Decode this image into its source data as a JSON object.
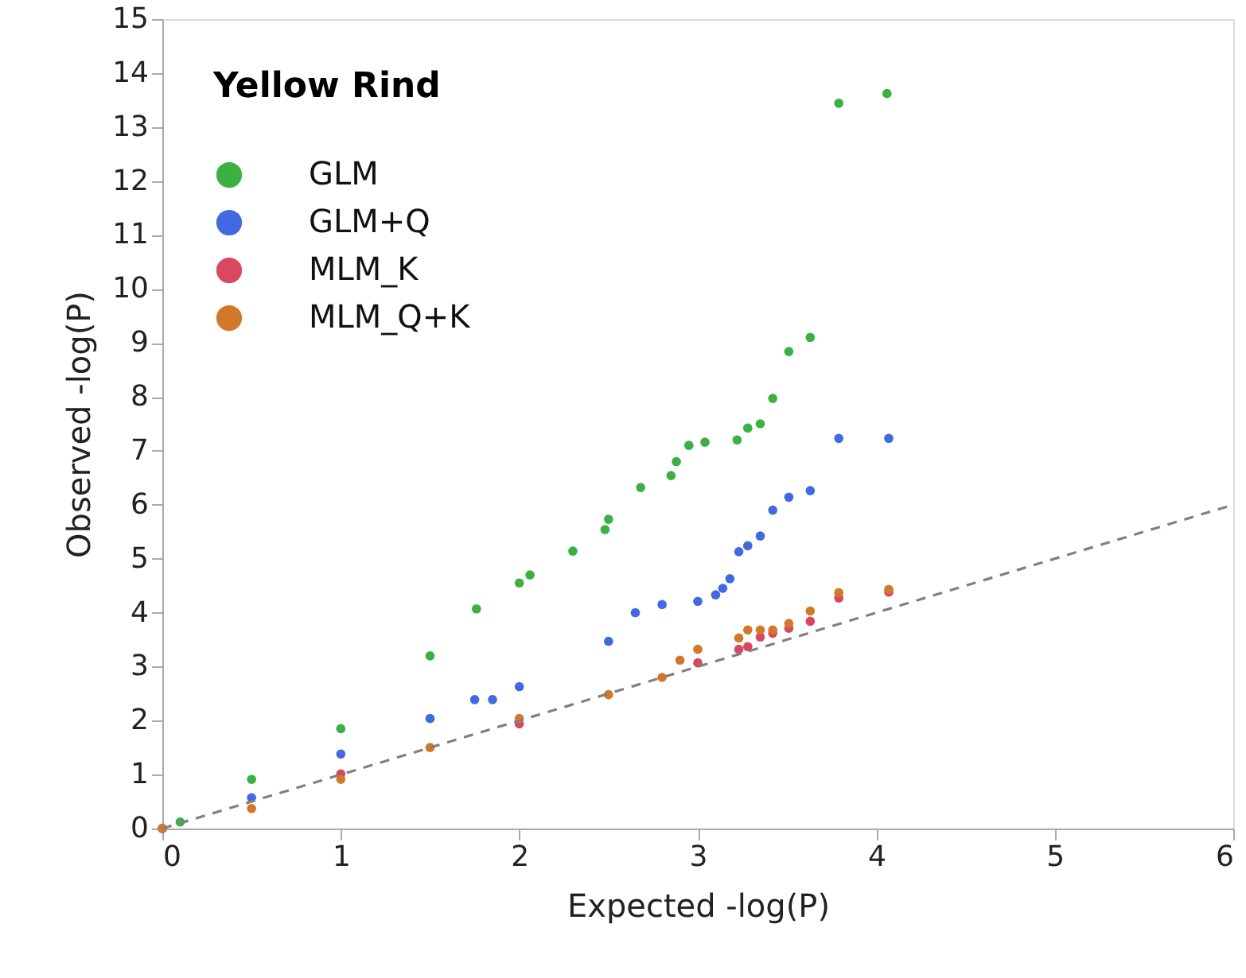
{
  "chart_data": {
    "type": "scatter",
    "legend_title": "Yellow Rind",
    "xlabel": "Expected -log(P)",
    "ylabel": "Observed -log(P)",
    "xlim": [
      0,
      6
    ],
    "ylim": [
      0,
      15
    ],
    "xticks": [
      0,
      1,
      2,
      3,
      4,
      5,
      6
    ],
    "yticks": [
      0,
      1,
      2,
      3,
      4,
      5,
      6,
      7,
      8,
      9,
      10,
      11,
      12,
      13,
      14,
      15
    ],
    "grid": false,
    "legend": "top left",
    "marker": "circle",
    "series": [
      {
        "name": "GLM",
        "color": "#3bb143",
        "x": [
          0,
          0.1,
          0.5,
          1,
          1.5,
          1.76,
          2,
          2.06,
          2.3,
          2.48,
          2.5,
          2.68,
          2.85,
          2.88,
          2.95,
          3.04,
          3.22,
          3.28,
          3.35,
          3.42,
          3.51,
          3.63,
          3.79,
          4.06
        ],
        "values": [
          0,
          0.12,
          0.91,
          1.85,
          3.2,
          4.07,
          4.55,
          4.7,
          5.14,
          5.54,
          5.73,
          6.32,
          6.54,
          6.8,
          7.1,
          7.16,
          7.2,
          7.42,
          7.5,
          7.97,
          8.84,
          9.1,
          13.44,
          13.62
        ]
      },
      {
        "name": "GLM+Q",
        "color": "#4169e1",
        "x": [
          0,
          0.5,
          1,
          1.5,
          1.75,
          1.85,
          2,
          2.5,
          2.65,
          2.8,
          3,
          3.1,
          3.14,
          3.18,
          3.23,
          3.28,
          3.35,
          3.42,
          3.51,
          3.63,
          3.79,
          4.07
        ],
        "values": [
          0,
          0.57,
          1.38,
          2.04,
          2.39,
          2.39,
          2.63,
          3.47,
          4.0,
          4.15,
          4.21,
          4.33,
          4.45,
          4.63,
          5.13,
          5.24,
          5.42,
          5.9,
          6.14,
          6.26,
          7.23,
          7.23
        ]
      },
      {
        "name": "MLM_K",
        "color": "#d9485f",
        "x": [
          0,
          1,
          2,
          3,
          3.23,
          3.28,
          3.35,
          3.42,
          3.51,
          3.63,
          3.79,
          4.07
        ],
        "values": [
          0,
          1.01,
          1.94,
          3.07,
          3.32,
          3.37,
          3.55,
          3.62,
          3.71,
          3.84,
          4.27,
          4.38
        ]
      },
      {
        "name": "MLM_Q+K",
        "color": "#d2782a",
        "x": [
          0,
          0.5,
          1,
          1.5,
          2,
          2.5,
          2.8,
          2.9,
          3,
          3.23,
          3.28,
          3.35,
          3.42,
          3.51,
          3.63,
          3.79,
          4.07
        ],
        "values": [
          0,
          0.37,
          0.91,
          1.5,
          2.04,
          2.48,
          2.8,
          3.12,
          3.32,
          3.53,
          3.68,
          3.68,
          3.68,
          3.8,
          4.03,
          4.37,
          4.43
        ]
      },
      {
        "type": "line",
        "color": "#808080",
        "line_style": "dashed",
        "marker": "none",
        "x": [
          0,
          6
        ],
        "values": [
          0,
          6
        ]
      }
    ]
  }
}
